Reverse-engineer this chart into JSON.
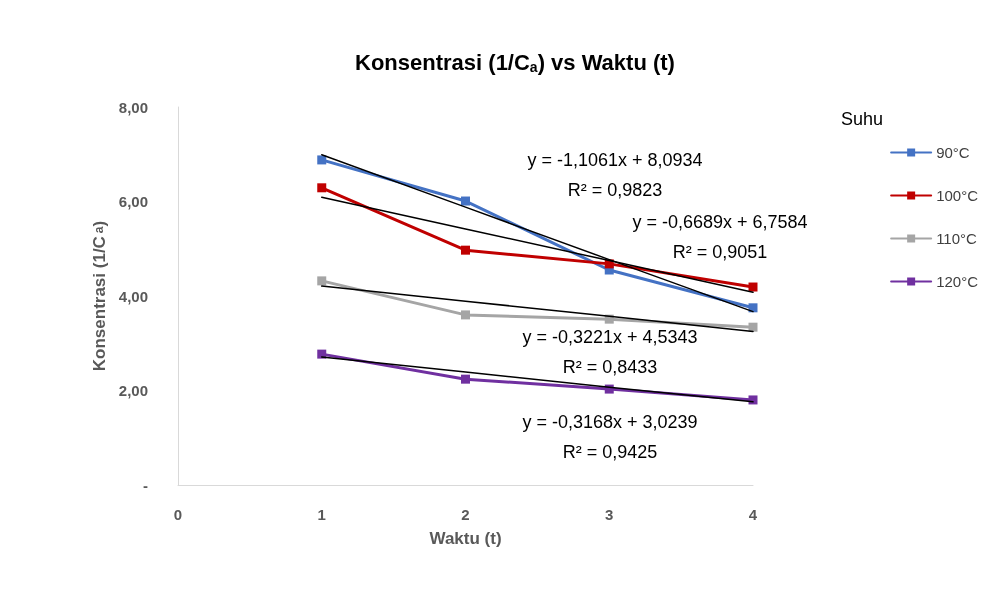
{
  "chart_data": {
    "type": "line",
    "title": "Konsentrasi (1/C$_{a}$) vs Waktu (t)",
    "xlabel": "Waktu (t)",
    "ylabel": "Konsentrasi (1/C$_{a}$)",
    "legend_title": "Suhu",
    "x": [
      1,
      2,
      3,
      4
    ],
    "series": [
      {
        "name": "90°C",
        "color": "#4472c4",
        "values": [
          6.88,
          6.01,
          4.55,
          3.75
        ]
      },
      {
        "name": "100°C",
        "color": "#c00000",
        "values": [
          6.29,
          4.97,
          4.68,
          4.19
        ]
      },
      {
        "name": "110°C",
        "color": "#a5a5a5",
        "values": [
          4.32,
          3.6,
          3.51,
          3.34
        ]
      },
      {
        "name": "120°C",
        "color": "#7030a0",
        "values": [
          2.77,
          2.24,
          2.03,
          1.8
        ]
      },
      {
        "type": "line",
        "color": "#000000",
        "marker": "none",
        "values": [
          6.99,
          5.88,
          4.77,
          3.67
        ]
      },
      {
        "type": "line",
        "color": "#000000",
        "marker": "none",
        "values": [
          6.09,
          5.42,
          4.75,
          4.08
        ]
      },
      {
        "type": "line",
        "color": "#000000",
        "marker": "none",
        "values": [
          4.21,
          3.89,
          3.57,
          3.25
        ]
      },
      {
        "type": "line",
        "color": "#000000",
        "marker": "none",
        "values": [
          2.71,
          2.39,
          2.07,
          1.76
        ]
      }
    ],
    "annotations": [
      "y = -1,1061x + 8,0934\nR² = 0,9823",
      "y = -0,6689x + 6,7584\nR² = 0,9051",
      "y = -0,3221x + 4,5343\nR² = 0,8433",
      "y = -0,3168x + 3,0239\nR² = 0,9425"
    ],
    "xlim": [
      0,
      4
    ],
    "xticks": [
      0,
      1,
      2,
      3,
      4
    ],
    "ylim": [
      0,
      8
    ],
    "yticks": [
      {
        "value": 0,
        "label": "-"
      },
      {
        "value": 2,
        "label": "2,00"
      },
      {
        "value": 4,
        "label": "4,00"
      },
      {
        "value": 6,
        "label": "6,00"
      },
      {
        "value": 8,
        "label": "8,00"
      }
    ],
    "grid": false,
    "legend": "right",
    "marker": "square",
    "line_style": "solid"
  }
}
